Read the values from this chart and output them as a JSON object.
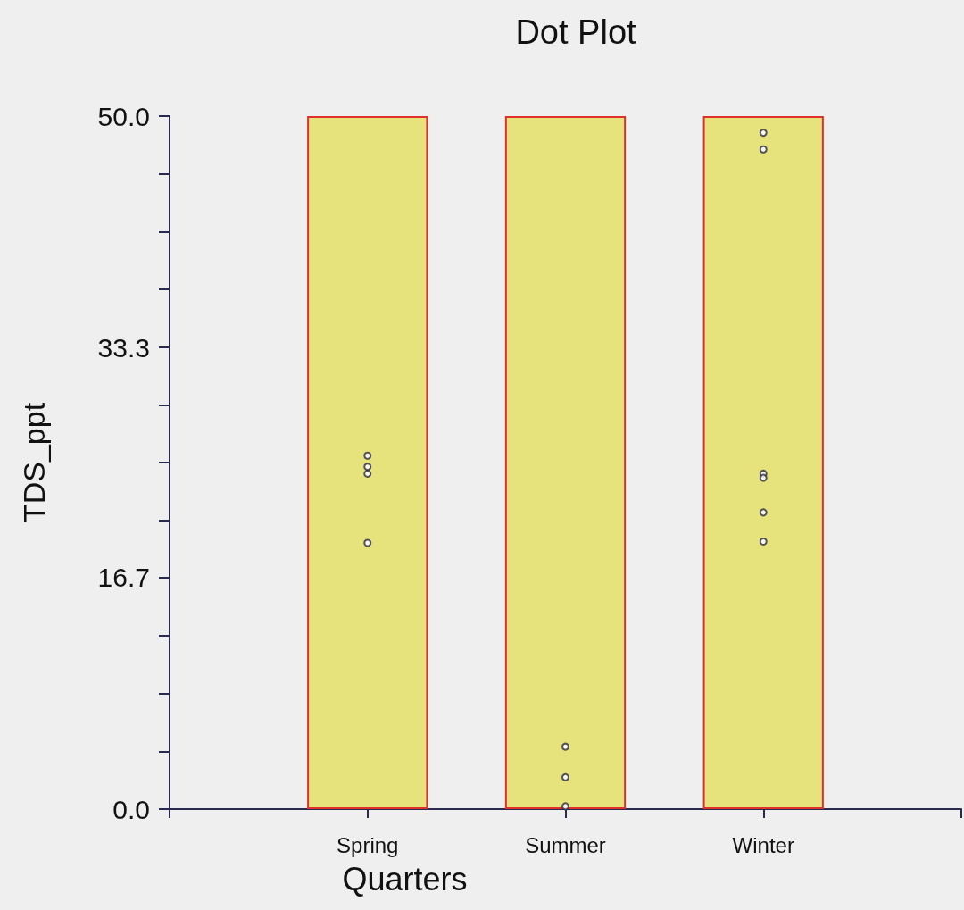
{
  "chart_data": {
    "type": "scatter",
    "title": "Dot Plot",
    "xlabel": "Quarters",
    "ylabel": "TDS_ppt",
    "categories": [
      null,
      "Spring",
      "Summer",
      "Winter",
      null
    ],
    "series": [
      {
        "type": "bar",
        "color": "#e6e27c",
        "values": [
          null,
          50,
          50,
          50,
          null
        ]
      },
      {
        "color": "#2b2b48",
        "x": [
          "Spring",
          "Spring",
          "Spring",
          "Spring",
          "Summer",
          "Summer",
          "Summer",
          "Winter",
          "Winter",
          "Winter",
          "Winter",
          "Winter",
          "Winter"
        ],
        "values": [
          25.5,
          24.7,
          24.2,
          19.2,
          4.5,
          2.3,
          0.2,
          48.8,
          47.6,
          24.2,
          23.9,
          21.4,
          19.3
        ]
      }
    ],
    "ylim": [
      0,
      50
    ],
    "yticks": [
      {
        "value": 0,
        "label": "0.0"
      },
      {
        "value": 4.17,
        "label": null
      },
      {
        "value": 8.33,
        "label": null
      },
      {
        "value": 12.5,
        "label": null
      },
      16.7,
      {
        "value": 20.83,
        "label": null
      },
      {
        "value": 25,
        "label": null
      },
      {
        "value": 29.17,
        "label": null
      },
      33.3,
      {
        "value": 37.5,
        "label": null
      },
      {
        "value": 41.67,
        "label": null
      },
      {
        "value": 45.83,
        "label": null
      },
      {
        "value": 50,
        "label": "50.0"
      }
    ],
    "marker": "circle",
    "grid": false
  }
}
